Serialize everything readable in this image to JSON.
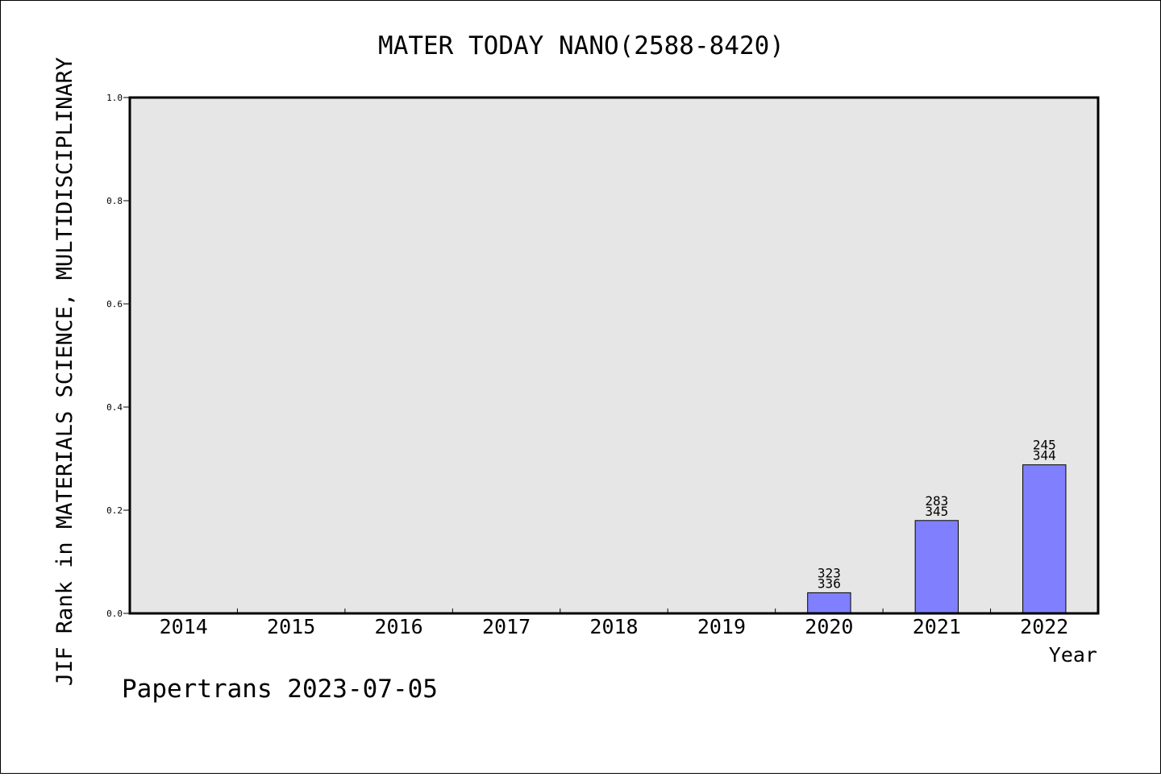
{
  "chart_data": {
    "type": "bar",
    "title": "MATER TODAY NANO(2588-8420)",
    "xlabel": "Year",
    "ylabel": "JIF Rank in MATERIALS SCIENCE, MULTIDISCIPLINARY",
    "categories": [
      "2014",
      "2015",
      "2016",
      "2017",
      "2018",
      "2019",
      "2020",
      "2021",
      "2022"
    ],
    "values": [
      null,
      null,
      null,
      null,
      null,
      null,
      0.04,
      0.18,
      0.288
    ],
    "bar_labels": [
      null,
      null,
      null,
      null,
      null,
      null,
      {
        "rank": "323",
        "total": "336"
      },
      {
        "rank": "283",
        "total": "345"
      },
      {
        "rank": "245",
        "total": "344"
      }
    ],
    "ylim": [
      0,
      1.0
    ],
    "yticks": [
      "0.0",
      "0.2",
      "0.4",
      "0.6",
      "0.8",
      "1.0"
    ],
    "grid": false,
    "colors": {
      "bar_fill": "#8080ff",
      "plot_background": "#e6e6e6",
      "axes": "#000000"
    }
  },
  "footer": "Papertrans 2023-07-05"
}
